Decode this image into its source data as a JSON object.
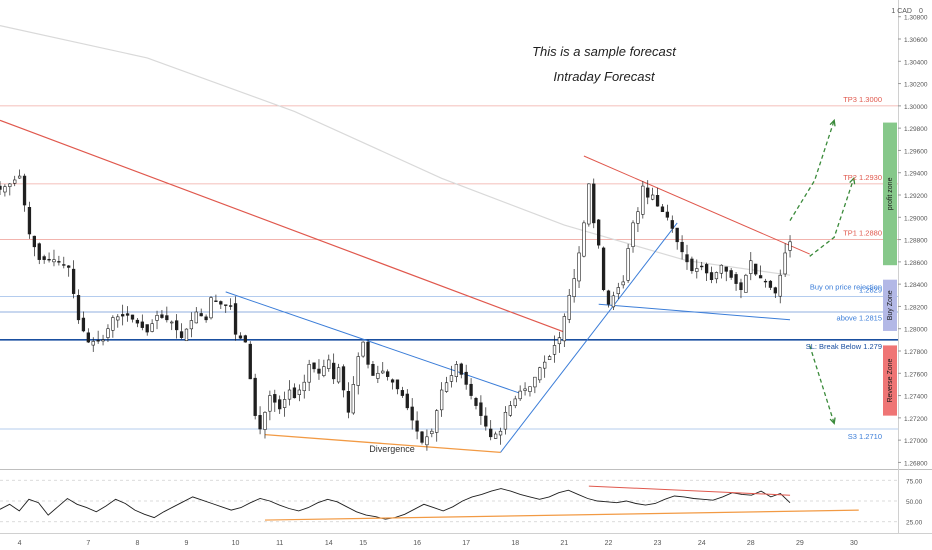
{
  "currency": "1 CAD",
  "currency_suffix": "0",
  "annotations": {
    "sample": "This is a sample forecast",
    "intraday": "Intraday Forecast",
    "divergence": "Divergence"
  },
  "levels": [
    {
      "id": "tp3",
      "value": 1.3,
      "label": "TP3 1.3000",
      "color": "#e0584d"
    },
    {
      "id": "tp2",
      "value": 1.293,
      "label": "TP2 1.2930",
      "color": "#e0584d"
    },
    {
      "id": "tp1",
      "value": 1.288,
      "label": "TP1 1.2880",
      "color": "#e0584d"
    },
    {
      "id": "lvl1",
      "value": 1.2829,
      "label": "1.2829",
      "color": "#3b7dd8"
    },
    {
      "id": "buy",
      "value": 1.2815,
      "label": "Buy on price rejection",
      "sub_label": "above 1.2815",
      "color": "#3b7dd8"
    },
    {
      "id": "sl",
      "value": 1.279,
      "label": "SL: Break Below 1.279",
      "color": "#1a4fa0"
    },
    {
      "id": "s3",
      "value": 1.271,
      "label": "S3 1.2710",
      "color": "#3b7dd8"
    }
  ],
  "zones": [
    {
      "id": "profit",
      "label": "profit zone",
      "from": 1.2857,
      "to": 1.2985,
      "color": "#86c88a"
    },
    {
      "id": "buy-zone",
      "label": "Buy Zone",
      "from": 1.2798,
      "to": 1.2844,
      "color": "#b3b8e6"
    },
    {
      "id": "reverse",
      "label": "Reverse Zone",
      "from": 1.2722,
      "to": 1.2785,
      "color": "#ef7575"
    }
  ],
  "chart_data": {
    "type": "candlestick",
    "y_axis": {
      "min": 1.2675,
      "max": 1.3095,
      "ticks": [
        1.268,
        1.27,
        1.272,
        1.274,
        1.276,
        1.278,
        1.28,
        1.282,
        1.284,
        1.286,
        1.288,
        1.29,
        1.292,
        1.294,
        1.296,
        1.298,
        1.3,
        1.302,
        1.304,
        1.306,
        1.308
      ]
    },
    "x_axis": {
      "ticks": [
        "4",
        "7",
        "8",
        "9",
        "10",
        "11",
        "14",
        "15",
        "16",
        "17",
        "18",
        "21",
        "22",
        "23",
        "24",
        "28",
        "29",
        "30"
      ]
    },
    "path": [
      [
        0,
        1.2925
      ],
      [
        2,
        1.293
      ],
      [
        4,
        1.2937
      ],
      [
        6,
        1.2885
      ],
      [
        8,
        1.2862
      ],
      [
        11,
        1.2862
      ],
      [
        14,
        1.2855
      ],
      [
        16,
        1.2808
      ],
      [
        18,
        1.2788
      ],
      [
        21,
        1.279
      ],
      [
        23,
        1.281
      ],
      [
        26,
        1.2812
      ],
      [
        28,
        1.2805
      ],
      [
        30,
        1.2797
      ],
      [
        32,
        1.2812
      ],
      [
        35,
        1.2806
      ],
      [
        37,
        1.2792
      ],
      [
        40,
        1.2815
      ],
      [
        42,
        1.2808
      ],
      [
        43,
        1.2828
      ],
      [
        45,
        1.2822
      ],
      [
        47,
        1.282
      ],
      [
        48,
        1.2795
      ],
      [
        50,
        1.2788
      ],
      [
        51,
        1.2755
      ],
      [
        52,
        1.2722
      ],
      [
        53,
        1.271
      ],
      [
        55,
        1.274
      ],
      [
        57,
        1.2728
      ],
      [
        59,
        1.2745
      ],
      [
        60,
        1.2738
      ],
      [
        62,
        1.2752
      ],
      [
        63,
        1.2768
      ],
      [
        65,
        1.276
      ],
      [
        67,
        1.2772
      ],
      [
        68,
        1.2755
      ],
      [
        69,
        1.2765
      ],
      [
        70,
        1.2745
      ],
      [
        71,
        1.2725
      ],
      [
        73,
        1.2775
      ],
      [
        74,
        1.2788
      ],
      [
        75,
        1.2768
      ],
      [
        76,
        1.2758
      ],
      [
        78,
        1.2762
      ],
      [
        80,
        1.2752
      ],
      [
        82,
        1.274
      ],
      [
        84,
        1.2718
      ],
      [
        86,
        1.2698
      ],
      [
        88,
        1.2708
      ],
      [
        90,
        1.2745
      ],
      [
        92,
        1.2758
      ],
      [
        93,
        1.2768
      ],
      [
        95,
        1.275
      ],
      [
        96,
        1.274
      ],
      [
        98,
        1.2722
      ],
      [
        100,
        1.2703
      ],
      [
        102,
        1.2708
      ],
      [
        103,
        1.2725
      ],
      [
        105,
        1.2737
      ],
      [
        106,
        1.2744
      ],
      [
        108,
        1.2748
      ],
      [
        110,
        1.2765
      ],
      [
        112,
        1.2775
      ],
      [
        113,
        1.2785
      ],
      [
        114,
        1.2792
      ],
      [
        116,
        1.283
      ],
      [
        117,
        1.2845
      ],
      [
        118,
        1.2868
      ],
      [
        119,
        1.2895
      ],
      [
        120,
        1.293
      ],
      [
        121,
        1.2895
      ],
      [
        122,
        1.2875
      ],
      [
        123,
        1.2835
      ],
      [
        124,
        1.2822
      ],
      [
        126,
        1.2837
      ],
      [
        127,
        1.2842
      ],
      [
        128,
        1.2872
      ],
      [
        129,
        1.2895
      ],
      [
        130,
        1.2905
      ],
      [
        131,
        1.2928
      ],
      [
        132,
        1.2918
      ],
      [
        133,
        1.292
      ],
      [
        134,
        1.291
      ],
      [
        136,
        1.29
      ],
      [
        137,
        1.289
      ],
      [
        138,
        1.2878
      ],
      [
        140,
        1.286
      ],
      [
        141,
        1.2852
      ],
      [
        143,
        1.2856
      ],
      [
        145,
        1.2844
      ],
      [
        147,
        1.2857
      ],
      [
        149,
        1.2846
      ],
      [
        151,
        1.2835
      ],
      [
        153,
        1.2861
      ],
      [
        154,
        1.2849
      ],
      [
        156,
        1.2842
      ],
      [
        158,
        1.2832
      ],
      [
        159,
        1.2848
      ],
      [
        160,
        1.2868
      ],
      [
        161,
        1.2878
      ]
    ],
    "resistance_long": [
      [
        0,
        1.2987
      ],
      [
        115,
        1.2797
      ]
    ],
    "resistance_short": [
      [
        119,
        1.2955
      ],
      [
        165,
        1.2867
      ]
    ],
    "support_rising": [
      [
        102,
        1.2689
      ],
      [
        138,
        1.2895
      ]
    ],
    "triangle_top": [
      [
        46,
        1.2833
      ],
      [
        106,
        1.2742
      ]
    ],
    "triangle_lower": [
      [
        122,
        1.2822
      ],
      [
        161,
        1.2808
      ]
    ],
    "divergence_line": [
      [
        54,
        1.2705
      ],
      [
        102,
        1.2689
      ]
    ],
    "ma_curve": [
      [
        0,
        1.3072
      ],
      [
        30,
        1.3043
      ],
      [
        60,
        1.2995
      ],
      [
        90,
        1.2935
      ],
      [
        115,
        1.2893
      ],
      [
        140,
        1.2861
      ],
      [
        161,
        1.2848
      ]
    ],
    "forecast_up_1": [
      [
        161,
        1.2897
      ],
      [
        166,
        1.2933
      ],
      [
        170,
        1.2987
      ]
    ],
    "forecast_up_2": [
      [
        165,
        1.2865
      ],
      [
        170,
        1.2882
      ],
      [
        174,
        1.2935
      ]
    ],
    "forecast_down": [
      [
        165,
        1.2785
      ],
      [
        170,
        1.2715
      ]
    ],
    "rsi": {
      "ticks": [
        75,
        50,
        25
      ],
      "range": [
        15,
        85
      ],
      "values": [
        40,
        46,
        38,
        52,
        48,
        33,
        43,
        53,
        46,
        42,
        37,
        44,
        52,
        47,
        39,
        34,
        30,
        37,
        43,
        49,
        55,
        51,
        47,
        43,
        39,
        42,
        48,
        53,
        50,
        45,
        41,
        38,
        42,
        48,
        52,
        49,
        43,
        37,
        33,
        31,
        28,
        30,
        34,
        40,
        46,
        42,
        38,
        43,
        50,
        55,
        58,
        62,
        65,
        62,
        58,
        55,
        52,
        55,
        60,
        63,
        58,
        53,
        50,
        49,
        48,
        50,
        47,
        45,
        47,
        52,
        56,
        55,
        53,
        52,
        51,
        55,
        60,
        58,
        57,
        62,
        55,
        59,
        48
      ]
    }
  }
}
